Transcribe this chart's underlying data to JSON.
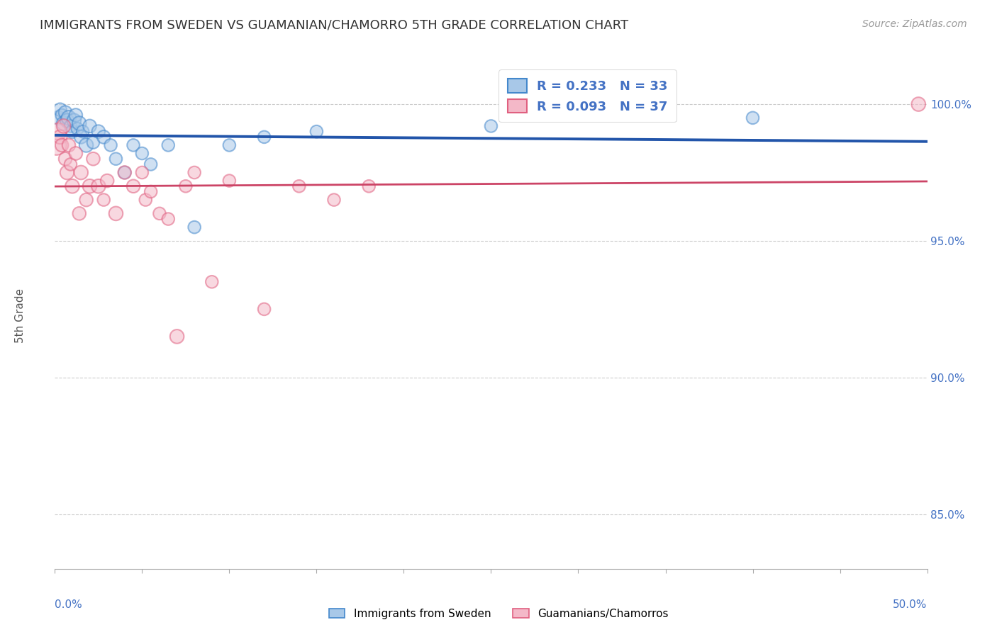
{
  "title": "IMMIGRANTS FROM SWEDEN VS GUAMANIAN/CHAMORRO 5TH GRADE CORRELATION CHART",
  "source": "Source: ZipAtlas.com",
  "ylabel": "5th Grade",
  "y_ticks": [
    85.0,
    90.0,
    95.0,
    100.0
  ],
  "x_lim": [
    0.0,
    50.0
  ],
  "y_lim": [
    83.0,
    101.5
  ],
  "legend_r1": "R = 0.233",
  "legend_n1": "N = 33",
  "legend_r2": "R = 0.093",
  "legend_n2": "N = 37",
  "blue_color": "#a8c8e8",
  "pink_color": "#f4b8c8",
  "blue_edge_color": "#4488cc",
  "pink_edge_color": "#e06080",
  "blue_line_color": "#2255aa",
  "pink_line_color": "#cc4466",
  "label_color": "#4472c4",
  "blue_scatter_x": [
    0.2,
    0.3,
    0.4,
    0.5,
    0.6,
    0.7,
    0.8,
    0.9,
    1.0,
    1.1,
    1.2,
    1.3,
    1.4,
    1.5,
    1.6,
    1.8,
    2.0,
    2.2,
    2.5,
    2.8,
    3.2,
    3.5,
    4.0,
    4.5,
    5.0,
    5.5,
    6.5,
    8.0,
    10.0,
    12.0,
    15.0,
    25.0,
    40.0
  ],
  "blue_scatter_y": [
    99.5,
    99.8,
    99.6,
    99.3,
    99.7,
    99.4,
    99.5,
    99.2,
    99.0,
    99.4,
    99.6,
    99.1,
    99.3,
    98.8,
    99.0,
    98.5,
    99.2,
    98.6,
    99.0,
    98.8,
    98.5,
    98.0,
    97.5,
    98.5,
    98.2,
    97.8,
    98.5,
    95.5,
    98.5,
    98.8,
    99.0,
    99.2,
    99.5
  ],
  "blue_scatter_sizes": [
    200,
    180,
    160,
    200,
    180,
    200,
    220,
    160,
    180,
    200,
    180,
    160,
    200,
    180,
    160,
    200,
    180,
    160,
    180,
    180,
    160,
    160,
    160,
    160,
    160,
    160,
    160,
    160,
    160,
    160,
    160,
    160,
    160
  ],
  "pink_scatter_x": [
    0.1,
    0.2,
    0.3,
    0.4,
    0.5,
    0.6,
    0.7,
    0.8,
    0.9,
    1.0,
    1.2,
    1.4,
    1.5,
    1.8,
    2.0,
    2.2,
    2.5,
    2.8,
    3.0,
    3.5,
    4.0,
    4.5,
    5.0,
    5.2,
    5.5,
    6.0,
    6.5,
    7.0,
    7.5,
    8.0,
    9.0,
    10.0,
    12.0,
    14.0,
    16.0,
    18.0,
    49.5
  ],
  "pink_scatter_y": [
    98.5,
    99.0,
    98.8,
    98.5,
    99.2,
    98.0,
    97.5,
    98.5,
    97.8,
    97.0,
    98.2,
    96.0,
    97.5,
    96.5,
    97.0,
    98.0,
    97.0,
    96.5,
    97.2,
    96.0,
    97.5,
    97.0,
    97.5,
    96.5,
    96.8,
    96.0,
    95.8,
    91.5,
    97.0,
    97.5,
    93.5,
    97.2,
    92.5,
    97.0,
    96.5,
    97.0,
    100.0
  ],
  "pink_scatter_sizes": [
    400,
    300,
    200,
    180,
    200,
    180,
    200,
    180,
    160,
    200,
    180,
    180,
    200,
    180,
    200,
    180,
    200,
    160,
    180,
    200,
    180,
    180,
    160,
    160,
    160,
    160,
    160,
    200,
    160,
    160,
    160,
    160,
    160,
    160,
    160,
    160,
    200
  ]
}
